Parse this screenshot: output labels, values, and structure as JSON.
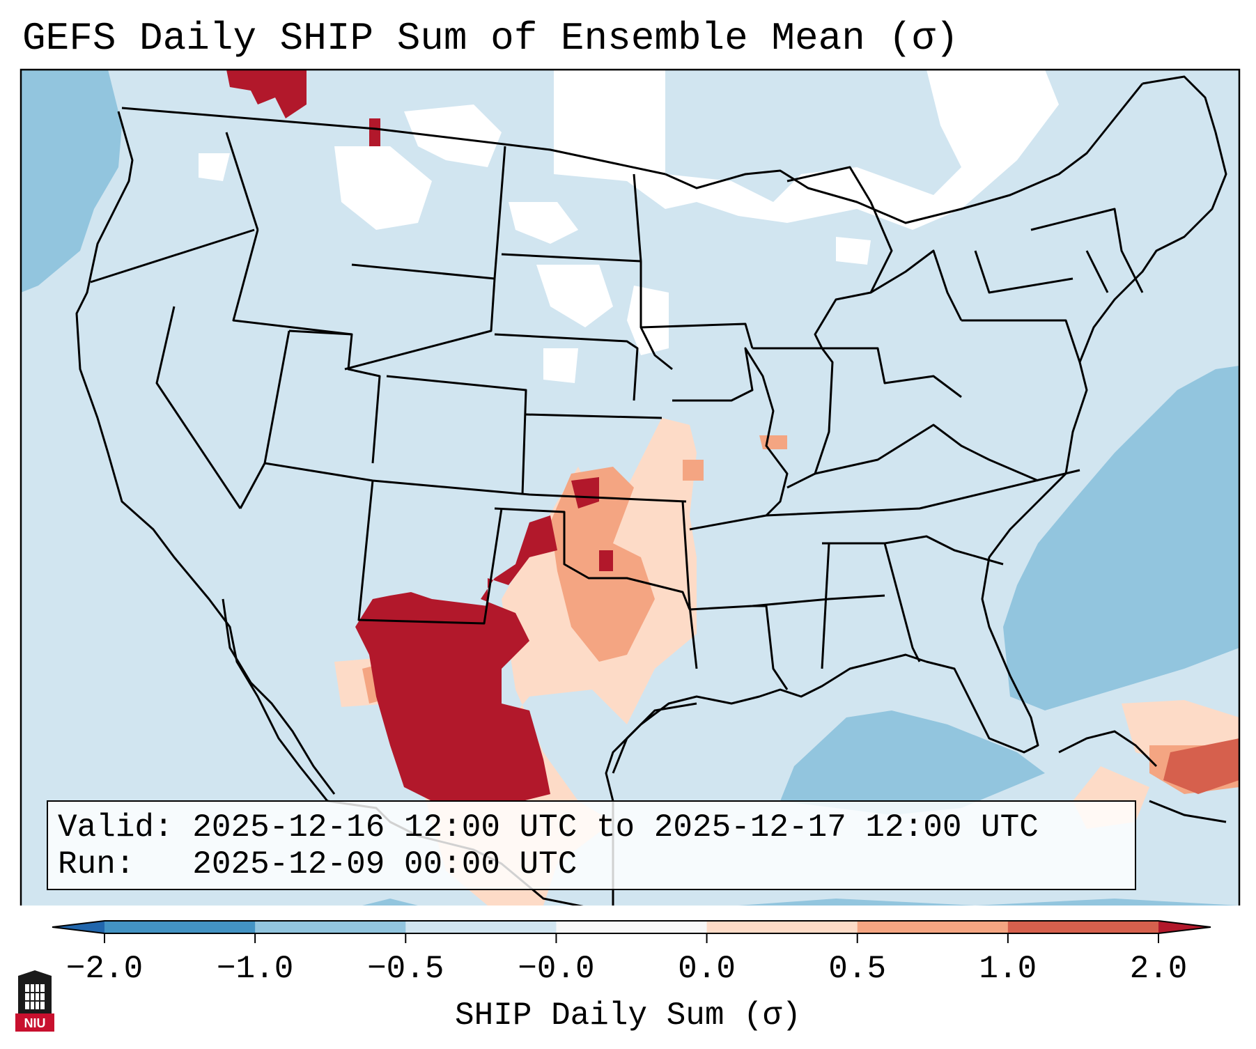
{
  "title": "GEFS Daily SHIP Sum of Ensemble Mean (σ)",
  "info": {
    "valid_label": "Valid:",
    "valid_text": "2025-12-16 12:00 UTC to 2025-12-17 12:00 UTC",
    "run_label": "Run:",
    "run_text": "2025-12-09 00:00 UTC"
  },
  "colorbar": {
    "label": "SHIP Daily Sum (σ)",
    "ticks": [
      "−2.0",
      "−1.0",
      "−0.5",
      "−0.0",
      "0.0",
      "0.5",
      "1.0",
      "2.0"
    ],
    "colors": [
      "#4393c3",
      "#92c5de",
      "#d1e5f0",
      "#f7f7f7",
      "#fddbc7",
      "#f4a582",
      "#d6604d",
      "#b2182b"
    ],
    "extend_low_color": "#2166ac",
    "extend_high_color": "#b2182b"
  },
  "map": {
    "region": "Contiguous United States",
    "field_colors": {
      "ocean_blue": "#92c5de",
      "land_background": "#d1e5f0",
      "near_zero": "#ffffff",
      "positive_light": "#fddbc7",
      "positive_mid": "#f4a582",
      "positive_strong": "#d6604d",
      "positive_max": "#b2182b"
    }
  },
  "logo": {
    "text": "NIU",
    "name": "Northern Illinois University logo"
  }
}
